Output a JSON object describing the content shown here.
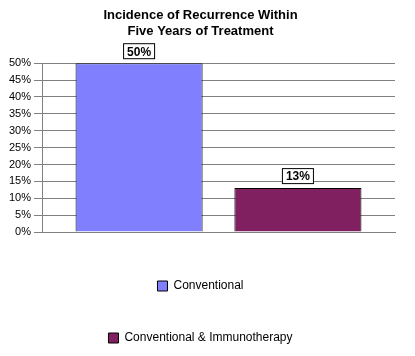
{
  "chart_data": {
    "type": "bar",
    "title": "Incidence of Recurrence Within Five Years of Treatment",
    "categories": [
      null
    ],
    "series": [
      {
        "name": "Conventional",
        "color": "#8080ff",
        "values": [
          50
        ],
        "value_labels": [
          "50%"
        ]
      },
      {
        "name": "Conventional & Immunotherapy",
        "color": "#802060",
        "values": [
          13
        ],
        "value_labels": [
          "13%"
        ]
      }
    ],
    "ylim": [
      0,
      50
    ],
    "yticks": [
      {
        "value": 0,
        "label": "0%"
      },
      {
        "value": 5,
        "label": "5%"
      },
      {
        "value": 10,
        "label": "10%"
      },
      {
        "value": 15,
        "label": "15%"
      },
      {
        "value": 20,
        "label": "20%"
      },
      {
        "value": 25,
        "label": "25%"
      },
      {
        "value": 30,
        "label": "30%"
      },
      {
        "value": 35,
        "label": "35%"
      },
      {
        "value": 40,
        "label": "40%"
      },
      {
        "value": 45,
        "label": "45%"
      },
      {
        "value": 50,
        "label": "50%"
      }
    ],
    "grid": true,
    "legend": "bottom",
    "data_labels": true,
    "tick_labels": "y"
  }
}
